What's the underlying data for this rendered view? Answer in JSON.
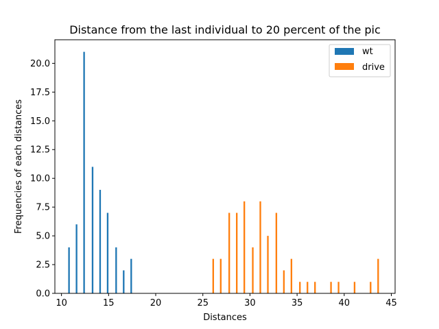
{
  "chart_data": {
    "type": "bar",
    "title": "Distance from the last individual to 20 percent of the pic",
    "xlabel": "Distances",
    "ylabel": "Frequencies of each distances",
    "xlim": [
      9.3,
      45.4
    ],
    "ylim": [
      0,
      22.05
    ],
    "xticks": [
      "10",
      "15",
      "20",
      "25",
      "30",
      "35",
      "40",
      "45"
    ],
    "yticks": [
      "0.0",
      "2.5",
      "5.0",
      "7.5",
      "10.0",
      "12.5",
      "15.0",
      "17.5",
      "20.0"
    ],
    "grid": false,
    "legend_position": "top-right",
    "bar_width": 0.17,
    "series": [
      {
        "name": "wt",
        "color": "#1f77b4",
        "x": [
          10.8,
          11.6,
          12.4,
          13.3,
          14.1,
          14.9,
          15.8,
          16.6,
          17.4
        ],
        "values": [
          4,
          6,
          21,
          11,
          9,
          7,
          4,
          2,
          3
        ]
      },
      {
        "name": "drive",
        "color": "#ff7f0e",
        "x": [
          26.1,
          26.9,
          27.8,
          28.6,
          29.4,
          30.3,
          31.1,
          31.9,
          32.8,
          33.6,
          34.4,
          35.3,
          36.1,
          36.9,
          38.6,
          39.4,
          41.1,
          42.8,
          43.6
        ],
        "values": [
          3,
          3,
          7,
          7,
          8,
          4,
          8,
          5,
          7,
          2,
          3,
          1,
          1,
          1,
          1,
          1,
          1,
          1,
          3
        ]
      }
    ]
  }
}
